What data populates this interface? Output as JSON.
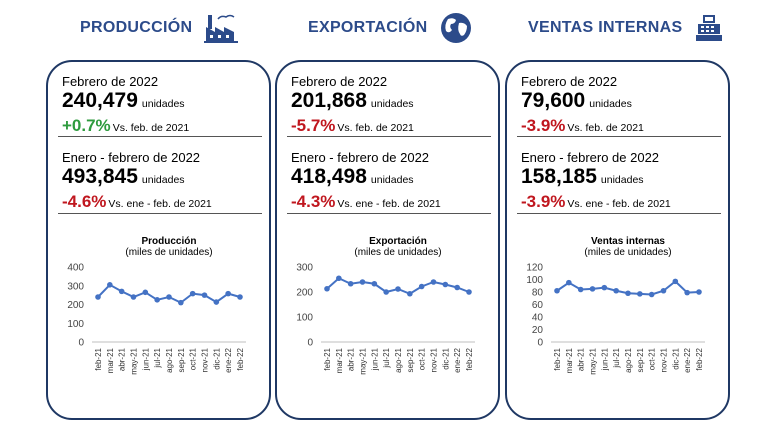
{
  "headers": [
    {
      "title": "PRODUCCIÓN",
      "icon": "factory-icon"
    },
    {
      "title": "EXPORTACIÓN",
      "icon": "globe-icon"
    },
    {
      "title": "VENTAS INTERNAS",
      "icon": "cash-register-icon"
    }
  ],
  "cards": [
    {
      "month": {
        "period": "Febrero de 2022",
        "value": "240,479",
        "unit": "unidades",
        "change": "+0.7%",
        "comparison": "Vs. feb. de 2021"
      },
      "ytd": {
        "period": "Enero - febrero de 2022",
        "value": "493,845",
        "unit": "unidades",
        "change": "-4.6%",
        "comparison": "Vs. ene - feb. de 2021"
      }
    },
    {
      "month": {
        "period": "Febrero de 2022",
        "value": "201,868",
        "unit": "unidades",
        "change": "-5.7%",
        "comparison": "Vs. feb. de 2021"
      },
      "ytd": {
        "period": "Enero - febrero de 2022",
        "value": "418,498",
        "unit": "unidades",
        "change": "-4.3%",
        "comparison": "Vs. ene - feb. de 2021"
      }
    },
    {
      "month": {
        "period": "Febrero de 2022",
        "value": "79,600",
        "unit": "unidades",
        "change": "-3.9%",
        "comparison": "Vs. feb. de 2021"
      },
      "ytd": {
        "period": "Enero - febrero de 2022",
        "value": "158,185",
        "unit": "unidades",
        "change": "-3.9%",
        "comparison": "Vs. ene - feb. de 2021"
      }
    }
  ],
  "colors": {
    "accent": "#2c4b8a",
    "positive": "#2e9b3e",
    "negative": "#c0171f",
    "series": "#4472c4"
  },
  "chart_data": [
    {
      "type": "line",
      "title": "Producción",
      "subtitle": "(miles de unidades)",
      "categories": [
        "feb-21",
        "mar-21",
        "abr-21",
        "may-21",
        "jun-21",
        "jul-21",
        "ago-21",
        "sep-21",
        "oct-21",
        "nov-21",
        "dic-21",
        "ene-22",
        "feb-22"
      ],
      "values": [
        240,
        305,
        270,
        240,
        265,
        225,
        240,
        210,
        258,
        250,
        213,
        258,
        240
      ],
      "ylim": [
        0,
        400
      ],
      "yticks": [
        0,
        100,
        200,
        300,
        400
      ]
    },
    {
      "type": "line",
      "title": "Exportación",
      "subtitle": "(miles de unidades)",
      "categories": [
        "feb-21",
        "mar-21",
        "abr-21",
        "may-21",
        "jun-21",
        "jul-21",
        "ago-21",
        "sep-21",
        "oct-21",
        "nov-21",
        "dic-21",
        "ene-22",
        "feb-22"
      ],
      "values": [
        213,
        255,
        233,
        240,
        233,
        200,
        212,
        193,
        222,
        240,
        230,
        218,
        200
      ],
      "ylim": [
        0,
        300
      ],
      "yticks": [
        0,
        100,
        200,
        300
      ]
    },
    {
      "type": "line",
      "title": "Ventas internas",
      "subtitle": "(miles de unidades)",
      "categories": [
        "feb-21",
        "mar-21",
        "abr-21",
        "may-21",
        "jun-21",
        "jul-21",
        "ago-21",
        "sep-21",
        "oct-21",
        "nov-21",
        "dic-21",
        "ene-22",
        "feb-22"
      ],
      "values": [
        82,
        95,
        84,
        85,
        87,
        82,
        78,
        77,
        76,
        82,
        97,
        79,
        80
      ],
      "ylim": [
        0,
        120
      ],
      "yticks": [
        0,
        20,
        40,
        60,
        80,
        100,
        120
      ]
    }
  ]
}
